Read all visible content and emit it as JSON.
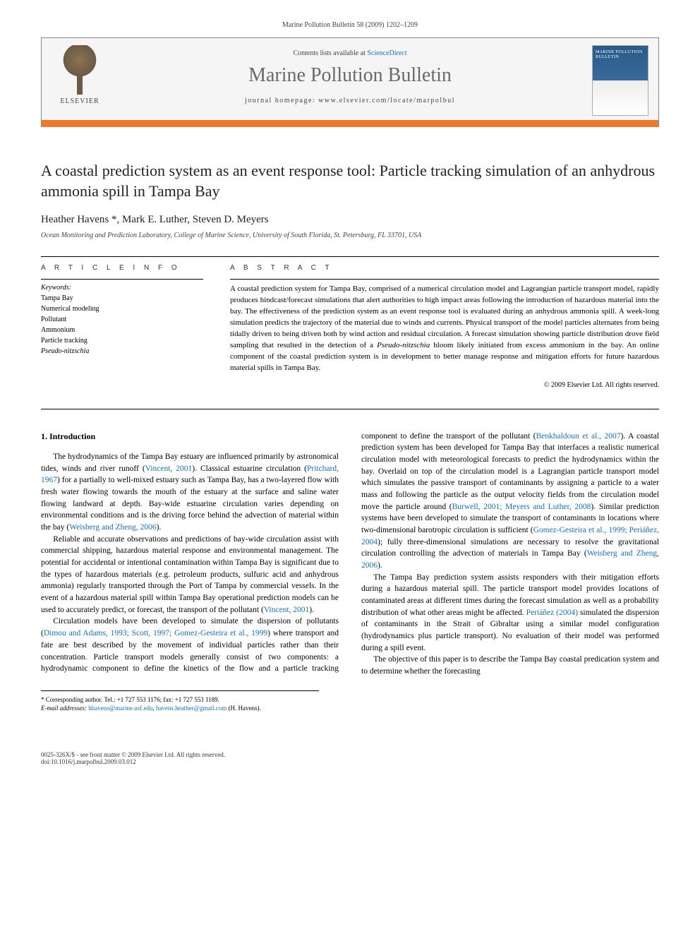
{
  "runningHeader": "Marine Pollution Bulletin 58 (2009) 1202–1209",
  "masthead": {
    "contentsLine_pre": "Contents lists available at ",
    "contentsLine_link": "ScienceDirect",
    "journalTitle": "Marine Pollution Bulletin",
    "homepageLine": "journal homepage: www.elsevier.com/locate/marpolbul",
    "publisherLabel": "ELSEVIER"
  },
  "article": {
    "title": "A coastal prediction system as an event response tool: Particle tracking simulation of an anhydrous ammonia spill in Tampa Bay",
    "authors": "Heather Havens *, Mark E. Luther, Steven D. Meyers",
    "affiliation": "Ocean Monitoring and Prediction Laboratory, College of Marine Science, University of South Florida, St. Petersburg, FL 33701, USA"
  },
  "info": {
    "heading": "A R T I C L E   I N F O",
    "keywordsLabel": "Keywords:",
    "keywords": [
      "Tampa Bay",
      "Numerical modeling",
      "Pollutant",
      "Ammonium",
      "Particle tracking",
      "Pseudo-nitzschia"
    ]
  },
  "abstract": {
    "heading": "A B S T R A C T",
    "text_pre": "A coastal prediction system for Tampa Bay, comprised of a numerical circulation model and Lagrangian particle transport model, rapidly produces hindcast/forecast simulations that alert authorities to high impact areas following the introduction of hazardous material into the bay. The effectiveness of the prediction system as an event response tool is evaluated during an anhydrous ammonia spill. A week-long simulation predicts the trajectory of the material due to winds and currents. Physical transport of the model particles alternates from being tidally driven to being driven both by wind action and residual circulation. A forecast simulation showing particle distribution drove field sampling that resulted in the detection of a ",
    "text_italic": "Pseudo-nitzschia",
    "text_post": " bloom likely initiated from excess ammonium in the bay. An online component of the coastal prediction system is in development to better manage response and mitigation efforts for future hazardous material spills in Tampa Bay.",
    "copyright": "© 2009 Elsevier Ltd. All rights reserved."
  },
  "body": {
    "sectionHeading": "1. Introduction",
    "p1_a": "The hydrodynamics of the Tampa Bay estuary are influenced primarily by astronomical tides, winds and river runoff (",
    "p1_c1": "Vincent, 2001",
    "p1_b": "). Classical estuarine circulation (",
    "p1_c2": "Pritchard, 1967",
    "p1_c": ") for a partially to well-mixed estuary such as Tampa Bay, has a two-layered flow with fresh water flowing towards the mouth of the estuary at the surface and saline water flowing landward at depth. Bay-wide estuarine circulation varies depending on environmental conditions and is the driving force behind the advection of material within the bay (",
    "p1_c3": "Weisberg and Zheng, 2006",
    "p1_d": ").",
    "p2_a": "Reliable and accurate observations and predictions of bay-wide circulation assist with commercial shipping, hazardous material response and environmental management. The potential for accidental or intentional contamination within Tampa Bay is significant due to the types of hazardous materials (e.g. petroleum products, sulfuric acid and anhydrous ammonia) regularly transported through the Port of Tampa by commercial vessels. In the event of a hazardous material spill within Tampa Bay operational prediction models can be used to accurately predict, or forecast, the transport of the pollutant (",
    "p2_c1": "Vincent, 2001",
    "p2_b": ").",
    "p3_a": "Circulation models have been developed to simulate the dispersion of pollutants (",
    "p3_c1": "Dimou and Adams, 1993; Scott, 1997; Gomez-Gesteira et al., 1999",
    "p3_b": ") where transport and fate are best described by the movement of individual particles rather than their concentration. Particle transport models generally consist of two components: a hydrodynamic component to define the kinetics of the flow and a particle tracking component to define the transport of the pollutant (",
    "p3_c2": "Benkhaldoun et al., 2007",
    "p3_c": "). A coastal prediction system has been developed for Tampa Bay that interfaces a realistic numerical circulation model with meteorological forecasts to predict the hydrodynamics within the bay. Overlaid on top of the circulation model is a Lagrangian particle transport model which simulates the passive transport of contaminants by assigning a particle to a water mass and following the particle as the output velocity fields from the circulation model move the particle around (",
    "p3_c3": "Burwell, 2001; Meyers and Luther, 2008",
    "p3_d": "). Similar prediction systems have been developed to simulate the transport of contaminants in locations where two-dimensional barotropic circulation is sufficient (",
    "p3_c4": "Gomez-Gesteira et al., 1999; Periáñez, 2004",
    "p3_e": "); fully three-dimensional simulations are necessary to resolve the gravitational circulation controlling the advection of materials in Tampa Bay (",
    "p3_c5": "Weisberg and Zheng, 2006",
    "p3_f": ").",
    "p4_a": "The Tampa Bay prediction system assists responders with their mitigation efforts during a hazardous material spill. The particle transport model provides locations of contaminated areas at different times during the forecast simulation as well as a probability distribution of what other areas might be affected. ",
    "p4_c1": "Periáñez (2004)",
    "p4_b": " simulated the dispersion of contaminants in the Strait of Gibraltar using a similar model configuration (hydrodynamics plus particle transport). No evaluation of their model was performed during a spill event.",
    "p5": "The objective of this paper is to describe the Tampa Bay coastal predication system and to determine whether the forecasting"
  },
  "footnotes": {
    "corr": "* Corresponding author. Tel.: +1 727 553 1176; fax: +1 727 553 1189.",
    "emailsLabel": "E-mail addresses:",
    "email1": "hhavens@marine.usf.edu",
    "sep": ", ",
    "email2": "havens.heather@gmail.com",
    "person": "(H. Havens)."
  },
  "footer": {
    "left1": "0025-326X/$ - see front matter © 2009 Elsevier Ltd. All rights reserved.",
    "left2": "doi:10.1016/j.marpolbul.2009.03.012"
  },
  "colors": {
    "link": "#1a6fb3",
    "orangeBar": "#e8792e",
    "mastheadBg": "#f5f5f5",
    "journalTitleColor": "#6a6a6a"
  }
}
